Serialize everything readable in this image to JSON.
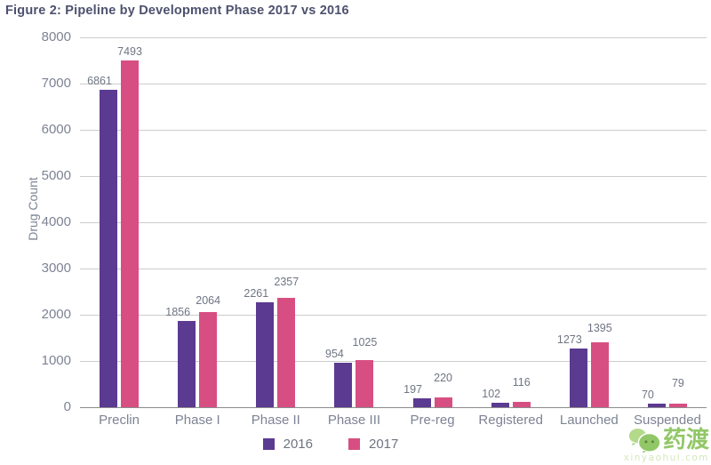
{
  "chart_data": {
    "type": "bar",
    "title": "Figure 2: Pipeline by Development Phase 2017 vs 2016",
    "categories": [
      "Preclin",
      "Phase I",
      "Phase II",
      "Phase III",
      "Pre-reg",
      "Registered",
      "Launched",
      "Suspended"
    ],
    "series": [
      {
        "name": "2016",
        "color": "#5b3a91",
        "values": [
          6861,
          1856,
          2261,
          954,
          197,
          102,
          1273,
          70
        ]
      },
      {
        "name": "2017",
        "color": "#d74f82",
        "values": [
          7493,
          2064,
          2357,
          1025,
          220,
          116,
          1395,
          79
        ]
      }
    ],
    "xlabel": "",
    "ylabel": "Drug Count",
    "ylim": [
      0,
      8000
    ],
    "ytick_step": 1000,
    "grid": true,
    "data_labels": true,
    "legend_position": "bottom"
  },
  "colors": {
    "title_text": "#4c516e",
    "axis_text": "#7d8394",
    "data_label_text": "#6f7583",
    "gridline": "#cccccc",
    "axis_line": "#8c8c8c",
    "background": "#ffffff",
    "watermark_green": "#7fbe4d"
  },
  "watermark": {
    "text": "药渡",
    "subtext": "xinyaohui.com",
    "icon": "chat-bubbles-icon"
  }
}
